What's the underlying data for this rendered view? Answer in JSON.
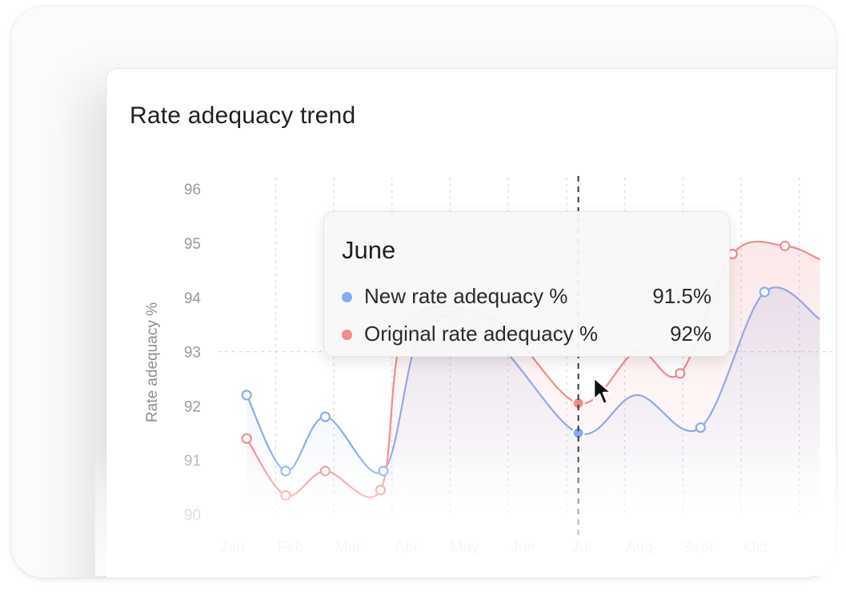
{
  "title": "Rate adequacy trend",
  "colors": {
    "new": "#89abf2",
    "original": "#f28b8b",
    "grid": "#d9d9dd",
    "crosshair": "#3a3a3a",
    "tick": "#9a9aa2"
  },
  "tooltip": {
    "title": "June",
    "rows": [
      {
        "label": "New rate adequacy %",
        "value": "91.5%",
        "color": "#89abf2"
      },
      {
        "label": "Original rate adequacy %",
        "value": "92%",
        "color": "#f28b8b"
      }
    ]
  },
  "chart_data": {
    "type": "line",
    "ylabel": "Rate adequacy %",
    "xlabel": "",
    "ylim": [
      90,
      96
    ],
    "yticks": [
      90,
      91,
      92,
      93,
      94,
      95,
      96
    ],
    "categories": [
      "Jan",
      "Feb",
      "Mar",
      "Apr",
      "May",
      "Jun",
      "Jul",
      "Aug",
      "Sept",
      "Oct"
    ],
    "series": [
      {
        "name": "New rate adequacy %",
        "color": "#89abf2",
        "x": [
          0.25,
          0.92,
          1.6,
          2.6,
          3.3,
          4.5,
          5.95,
          6.95,
          8.05,
          9.15,
          10.1
        ],
        "y": [
          92.2,
          90.8,
          91.8,
          90.8,
          93.5,
          93.2,
          91.5,
          92.2,
          91.6,
          94.1,
          93.6
        ],
        "markers": [
          0,
          1,
          2,
          3,
          6,
          8,
          9
        ]
      },
      {
        "name": "Original rate adequacy %",
        "color": "#f28b8b",
        "x": [
          0.25,
          0.92,
          1.6,
          2.55,
          3.0,
          4.5,
          5.95,
          6.95,
          7.7,
          8.6,
          9.5,
          10.1
        ],
        "y": [
          91.4,
          90.35,
          90.8,
          90.45,
          93.5,
          93.6,
          92.05,
          93.0,
          92.6,
          94.8,
          94.95,
          94.7
        ],
        "markers": [
          0,
          1,
          2,
          3,
          6,
          8,
          9,
          10
        ]
      }
    ],
    "highlight": {
      "category": "Jun",
      "x": 5.95
    },
    "grid": true,
    "legend": "tooltip"
  }
}
